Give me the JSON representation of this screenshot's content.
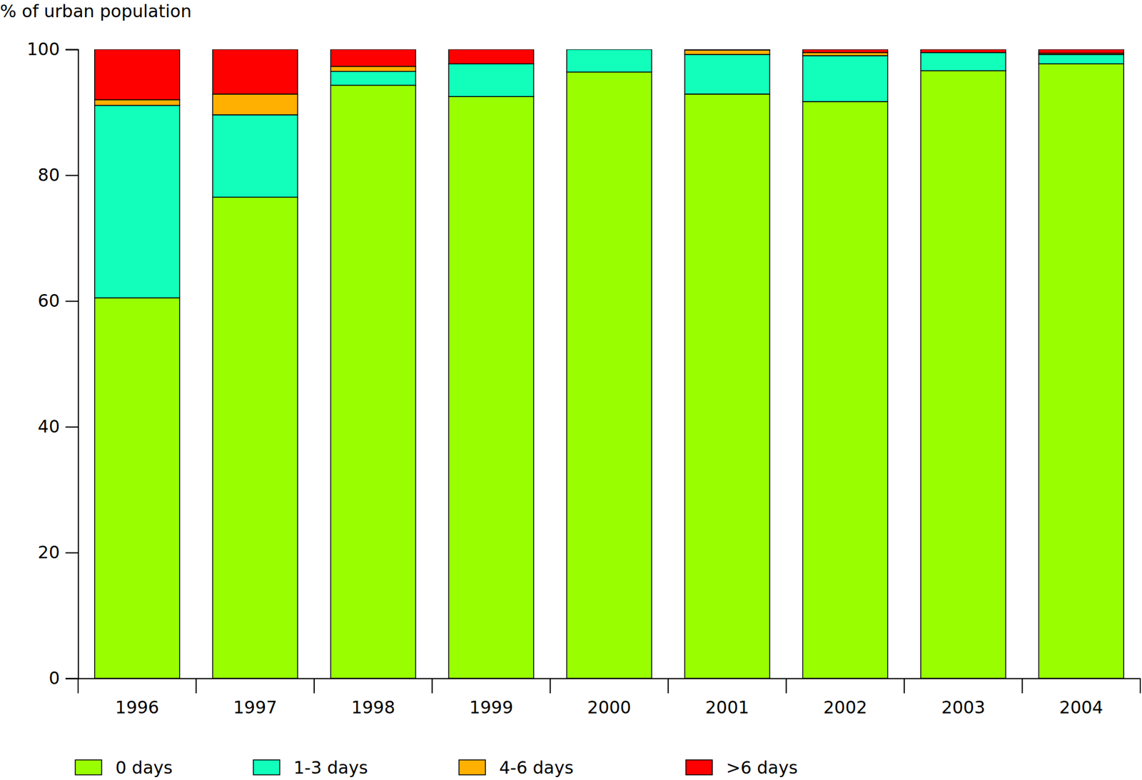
{
  "chart_data": {
    "type": "bar",
    "stacked": true,
    "y_label": "% of urban population",
    "categories": [
      "1996",
      "1997",
      "1998",
      "1999",
      "2000",
      "2001",
      "2002",
      "2003",
      "2004"
    ],
    "series": [
      {
        "name": "0 days",
        "color": "#99ff00",
        "values": [
          60.5,
          76.5,
          94.3,
          92.5,
          96.4,
          92.9,
          91.7,
          96.6,
          97.7
        ]
      },
      {
        "name": "1-3 days",
        "color": "#11ffbb",
        "values": [
          30.6,
          13.1,
          2.2,
          5.2,
          3.6,
          6.3,
          7.3,
          2.9,
          1.5
        ]
      },
      {
        "name": "4-6 days",
        "color": "#ffb000",
        "values": [
          0.9,
          3.3,
          0.8,
          0,
          0,
          0.7,
          0.5,
          0,
          0.2
        ]
      },
      {
        "name": ">6 days",
        "color": "#ff0000",
        "values": [
          8.0,
          7.1,
          2.7,
          2.3,
          0,
          0.1,
          0.5,
          0.5,
          0.6
        ]
      }
    ],
    "ylim": [
      0,
      100
    ],
    "yticks": [
      0,
      20,
      40,
      60,
      80,
      100
    ],
    "legend": "bottom"
  }
}
